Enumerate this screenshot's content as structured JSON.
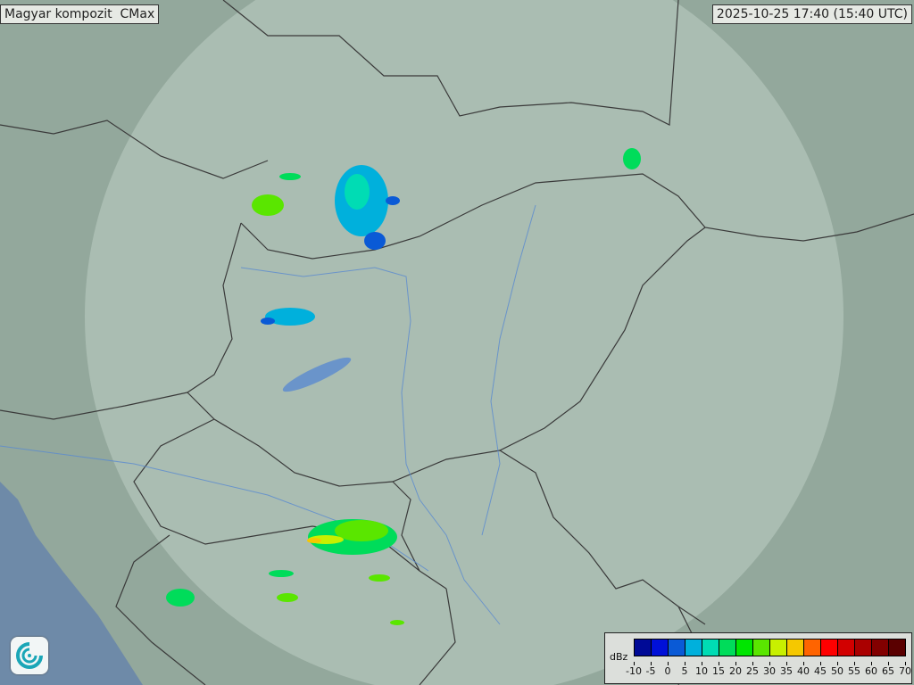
{
  "header": {
    "title": "Magyar kompozit  CMax",
    "timestamp": "2025-10-25 17:40 (15:40 UTC)"
  },
  "legend": {
    "unit": "dBz",
    "ticks": [
      "-10",
      "-5",
      "0",
      "5",
      "10",
      "15",
      "20",
      "25",
      "30",
      "35",
      "40",
      "45",
      "50",
      "55",
      "60",
      "65",
      "70"
    ],
    "colors": [
      "#000a96",
      "#0010d8",
      "#0a5ad6",
      "#00b0dc",
      "#00dcb4",
      "#00dc5a",
      "#00e600",
      "#5ae600",
      "#c8f000",
      "#f5c800",
      "#ff6400",
      "#ff0000",
      "#d20000",
      "#aa0000",
      "#820000",
      "#5a0000"
    ]
  },
  "map": {
    "background_color": "#8fa59a",
    "coverage_color": "#c4d2ca",
    "border_color": "#3a3a3a",
    "water_color": "#5a8ad0"
  },
  "logo": {
    "icon": "swirl-logo-icon"
  }
}
